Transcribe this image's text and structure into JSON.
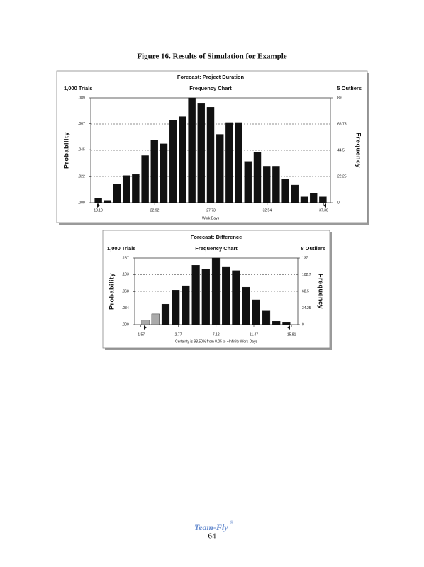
{
  "figure_title": "Figure 16. Results of Simulation for Example",
  "chart_data": [
    {
      "type": "histogram",
      "title": "Forecast: Project Duration",
      "left_header": "1,000 Trials",
      "subtitle": "Frequency Chart",
      "right_header": "5 Outliers",
      "ylabel": "Probability",
      "y2label": "Frequency",
      "xlabel": "Work Days",
      "color": "#111111",
      "bins": [
        17.7,
        18.5,
        19.3,
        20.1,
        20.9,
        21.7,
        22.5,
        23.3,
        24.1,
        24.9,
        25.7,
        26.5,
        27.3,
        28.1,
        28.9,
        29.7,
        30.5,
        31.3,
        32.1,
        32.9,
        33.7,
        34.5,
        35.3,
        36.1,
        36.9,
        37.7
      ],
      "values": [
        4,
        2,
        16,
        23,
        24,
        40,
        53,
        50,
        70,
        73,
        89,
        84,
        81,
        58,
        68,
        68,
        35,
        43,
        31,
        31,
        20,
        15,
        5,
        8,
        5
      ],
      "xlim": [
        17.7,
        37.7
      ],
      "xticks": [
        {
          "value": 18.1,
          "label": "18.10"
        },
        22.92,
        27.73,
        32.54,
        37.36
      ],
      "ylim": [
        0,
        89
      ],
      "yticks": [
        0,
        22.25,
        44.5,
        66.75,
        89
      ],
      "y2lim": [
        0,
        0.089
      ],
      "y2ticks": [
        {
          "value": 0,
          "label": ".000"
        },
        {
          "value": 0.022,
          "label": ".022"
        },
        {
          "value": 0.045,
          "label": ".045"
        },
        {
          "value": 0.067,
          "label": ".067"
        },
        {
          "value": 0.089,
          "label": ".089"
        }
      ],
      "grid": true
    },
    {
      "type": "histogram",
      "title": "Forecast: Difference",
      "left_header": "1,000 Trials",
      "subtitle": "Frequency Chart",
      "right_header": "8 Outliers",
      "ylabel": "Probability",
      "y2label": "Frequency",
      "note": "Certainty is 98.50% from 0.05 to +Infinity Work Days",
      "color": "#111111",
      "colors": [
        "#aaaaaa",
        "#aaaaaa",
        "#111111",
        "#111111",
        "#111111",
        "#111111",
        "#111111",
        "#111111",
        "#111111",
        "#111111",
        "#111111",
        "#111111",
        "#111111",
        "#111111",
        "#111111"
      ],
      "bins": [
        -1.6,
        -0.44,
        0.72,
        1.88,
        3.04,
        4.2,
        5.36,
        6.52,
        7.68,
        8.84,
        10,
        11.16,
        12.32,
        13.48,
        14.64,
        15.8
      ],
      "values": [
        9,
        22,
        42,
        71,
        80,
        122,
        114,
        137,
        118,
        111,
        77,
        51,
        28,
        7,
        4
      ],
      "xlim": [
        -1.6,
        15.8
      ],
      "xticks": [
        -1.57,
        2.77,
        7.12,
        11.47,
        15.81
      ],
      "ylim": [
        0,
        137
      ],
      "yticks": [
        0,
        34.25,
        68.5,
        {
          "value": 102.75,
          "label": "102.7"
        },
        137
      ],
      "y2lim": [
        0,
        0.137
      ],
      "y2ticks": [
        {
          "value": 0,
          "label": ".000"
        },
        {
          "value": 0.034,
          "label": ".034"
        },
        {
          "value": 0.068,
          "label": ".068"
        },
        {
          "value": 0.103,
          "label": ".103"
        },
        {
          "value": 0.137,
          "label": ".137"
        }
      ],
      "grid": true
    }
  ],
  "footer": {
    "brand": "Team-Fly",
    "mark": "®",
    "page_number": "64"
  }
}
